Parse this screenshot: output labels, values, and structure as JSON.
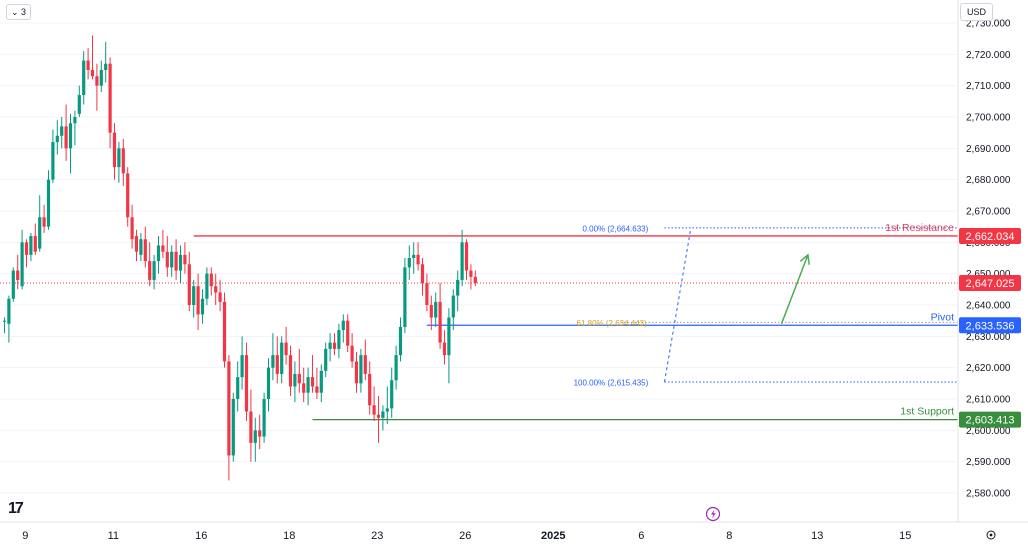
{
  "toolbar": {
    "collapse_label": "⌄ 3",
    "currency_label": "USD"
  },
  "colors": {
    "up": "#089981",
    "down": "#f23645",
    "resistance": "#f23645",
    "pivot": "#2962ff",
    "support": "#388e3c",
    "fib": "#2962ff",
    "arrow": "#4caf50",
    "grid": "#f0f3fa",
    "axis_text": "#131722"
  },
  "chart_data": {
    "type": "candlestick",
    "title": "",
    "y_ticks": [
      2580,
      2590,
      2600,
      2610,
      2620,
      2630,
      2640,
      2650,
      2660,
      2670,
      2680,
      2690,
      2700,
      2710,
      2720,
      2730
    ],
    "y_tick_labels": [
      "2,580.000",
      "2,590.000",
      "2,600.000",
      "2,610.000",
      "2,620.000",
      "2,630.000",
      "2,640.000",
      "2,650.000",
      "2,660.000",
      "2,670.000",
      "2,680.000",
      "2,690.000",
      "2,700.000",
      "2,710.000",
      "2,720.000",
      "2,730.000"
    ],
    "ylim": [
      2575,
      2733
    ],
    "x_ticks": [
      {
        "label": "9",
        "bar": 2
      },
      {
        "label": "11",
        "bar": 22
      },
      {
        "label": "16",
        "bar": 42
      },
      {
        "label": "18",
        "bar": 62
      },
      {
        "label": "23",
        "bar": 82
      },
      {
        "label": "26",
        "bar": 102
      },
      {
        "label": "2025",
        "bar": 122,
        "bold": true
      },
      {
        "label": "6",
        "bar": 142
      },
      {
        "label": "8",
        "bar": 162
      },
      {
        "label": "13",
        "bar": 182
      },
      {
        "label": "15",
        "bar": 202
      }
    ],
    "levels": [
      {
        "name": "1st Resistance",
        "value": 2662.034,
        "value_label": "2,662.034",
        "color": "#f23645",
        "start_bar": 43
      },
      {
        "name": "Pivot",
        "value": 2633.536,
        "value_label": "2,633.536",
        "color": "#2962ff",
        "start_bar": 96
      },
      {
        "name": "1st Support",
        "value": 2603.413,
        "value_label": "2,603.413",
        "color": "#388e3c",
        "start_bar": 70
      }
    ],
    "last_price": {
      "value": 2647.025,
      "value_label": "2,647.025"
    },
    "fibonacci": [
      {
        "label": "0.00% (2,664.633)",
        "value": 2664.633
      },
      {
        "label": "61.80% (2,634.443)",
        "value": 2634.443
      },
      {
        "label": "100.00% (2,615.435)",
        "value": 2615.435
      }
    ],
    "arrow": {
      "from": {
        "bar": 160,
        "value": 2634
      },
      "to": {
        "bar": 166,
        "value": 2656
      }
    },
    "candles": [
      [
        2635,
        2636,
        2631,
        2635
      ],
      [
        2634,
        2643,
        2628,
        2642
      ],
      [
        2642,
        2652,
        2641,
        2651
      ],
      [
        2651,
        2656,
        2645,
        2648
      ],
      [
        2646,
        2664,
        2645,
        2660
      ],
      [
        2660,
        2661,
        2652,
        2656
      ],
      [
        2656,
        2663,
        2654,
        2662
      ],
      [
        2662,
        2666,
        2656,
        2657
      ],
      [
        2658,
        2675,
        2657,
        2668
      ],
      [
        2668,
        2672,
        2663,
        2665
      ],
      [
        2665,
        2683,
        2664,
        2680
      ],
      [
        2680,
        2696,
        2679,
        2692
      ],
      [
        2692,
        2699,
        2688,
        2694
      ],
      [
        2694,
        2700,
        2690,
        2697
      ],
      [
        2697,
        2704,
        2686,
        2690
      ],
      [
        2690,
        2701,
        2682,
        2698
      ],
      [
        2698,
        2702,
        2691,
        2700
      ],
      [
        2701,
        2710,
        2700,
        2707
      ],
      [
        2707,
        2721,
        2704,
        2718
      ],
      [
        2718,
        2722,
        2712,
        2715
      ],
      [
        2715,
        2726,
        2712,
        2713
      ],
      [
        2713,
        2717,
        2702,
        2710
      ],
      [
        2710,
        2718,
        2708,
        2715
      ],
      [
        2715,
        2724,
        2711,
        2717
      ],
      [
        2717,
        2719,
        2690,
        2695
      ],
      [
        2695,
        2698,
        2680,
        2684
      ],
      [
        2684,
        2692,
        2679,
        2690
      ],
      [
        2690,
        2693,
        2678,
        2682
      ],
      [
        2682,
        2684,
        2665,
        2668
      ],
      [
        2668,
        2672,
        2658,
        2661
      ],
      [
        2662,
        2664,
        2654,
        2657
      ],
      [
        2656,
        2663,
        2654,
        2661
      ],
      [
        2661,
        2665,
        2652,
        2654
      ],
      [
        2654,
        2660,
        2646,
        2648
      ],
      [
        2648,
        2656,
        2645,
        2654
      ],
      [
        2654,
        2662,
        2650,
        2659
      ],
      [
        2659,
        2664,
        2655,
        2657
      ],
      [
        2657,
        2662,
        2649,
        2652
      ],
      [
        2652,
        2659,
        2649,
        2657
      ],
      [
        2657,
        2661,
        2648,
        2651
      ],
      [
        2651,
        2659,
        2647,
        2656
      ],
      [
        2656,
        2660,
        2650,
        2653
      ],
      [
        2653,
        2657,
        2638,
        2640
      ],
      [
        2640,
        2648,
        2636,
        2646
      ],
      [
        2646,
        2650,
        2632,
        2637
      ],
      [
        2637,
        2645,
        2634,
        2642
      ],
      [
        2642,
        2652,
        2640,
        2650
      ],
      [
        2650,
        2652,
        2643,
        2646
      ],
      [
        2646,
        2650,
        2640,
        2644
      ],
      [
        2644,
        2648,
        2638,
        2641
      ],
      [
        2641,
        2644,
        2620,
        2622
      ],
      [
        2622,
        2624,
        2584,
        2592
      ],
      [
        2592,
        2612,
        2590,
        2610
      ],
      [
        2610,
        2622,
        2606,
        2617
      ],
      [
        2617,
        2630,
        2613,
        2624
      ],
      [
        2624,
        2628,
        2603,
        2606
      ],
      [
        2606,
        2613,
        2590,
        2596
      ],
      [
        2596,
        2604,
        2590,
        2600
      ],
      [
        2600,
        2605,
        2594,
        2598
      ],
      [
        2598,
        2612,
        2596,
        2610
      ],
      [
        2610,
        2623,
        2606,
        2620
      ],
      [
        2620,
        2631,
        2616,
        2624
      ],
      [
        2624,
        2630,
        2615,
        2618
      ],
      [
        2618,
        2630,
        2615,
        2628
      ],
      [
        2628,
        2633,
        2621,
        2624
      ],
      [
        2624,
        2627,
        2611,
        2614
      ],
      [
        2614,
        2622,
        2609,
        2618
      ],
      [
        2618,
        2626,
        2612,
        2615
      ],
      [
        2615,
        2620,
        2609,
        2612
      ],
      [
        2612,
        2620,
        2608,
        2617
      ],
      [
        2617,
        2624,
        2612,
        2614
      ],
      [
        2614,
        2620,
        2610,
        2612
      ],
      [
        2612,
        2621,
        2609,
        2619
      ],
      [
        2619,
        2628,
        2617,
        2626
      ],
      [
        2626,
        2631,
        2622,
        2628
      ],
      [
        2628,
        2631,
        2624,
        2626
      ],
      [
        2626,
        2634,
        2623,
        2632
      ],
      [
        2632,
        2637,
        2628,
        2635
      ],
      [
        2635,
        2637,
        2625,
        2627
      ],
      [
        2627,
        2631,
        2620,
        2622
      ],
      [
        2622,
        2625,
        2612,
        2615
      ],
      [
        2615,
        2626,
        2612,
        2624
      ],
      [
        2624,
        2629,
        2616,
        2618
      ],
      [
        2618,
        2622,
        2605,
        2608
      ],
      [
        2608,
        2614,
        2603,
        2605
      ],
      [
        2605,
        2611,
        2596,
        2604
      ],
      [
        2604,
        2608,
        2600,
        2606
      ],
      [
        2606,
        2614,
        2602,
        2607
      ],
      [
        2607,
        2620,
        2604,
        2616
      ],
      [
        2616,
        2627,
        2613,
        2624
      ],
      [
        2624,
        2636,
        2622,
        2633
      ],
      [
        2633,
        2655,
        2631,
        2652
      ],
      [
        2652,
        2659,
        2648,
        2655
      ],
      [
        2655,
        2660,
        2650,
        2656
      ],
      [
        2656,
        2660,
        2651,
        2653
      ],
      [
        2653,
        2655,
        2643,
        2647
      ],
      [
        2647,
        2650,
        2638,
        2640
      ],
      [
        2640,
        2643,
        2632,
        2636
      ],
      [
        2636,
        2644,
        2633,
        2641
      ],
      [
        2641,
        2647,
        2626,
        2628
      ],
      [
        2628,
        2632,
        2621,
        2624
      ],
      [
        2624,
        2639,
        2615,
        2636
      ],
      [
        2636,
        2645,
        2632,
        2643
      ],
      [
        2643,
        2651,
        2638,
        2648
      ],
      [
        2648,
        2664,
        2646,
        2660
      ],
      [
        2660,
        2661,
        2648,
        2651
      ],
      [
        2651,
        2653,
        2645,
        2649
      ],
      [
        2649,
        2651,
        2646,
        2647
      ]
    ]
  }
}
